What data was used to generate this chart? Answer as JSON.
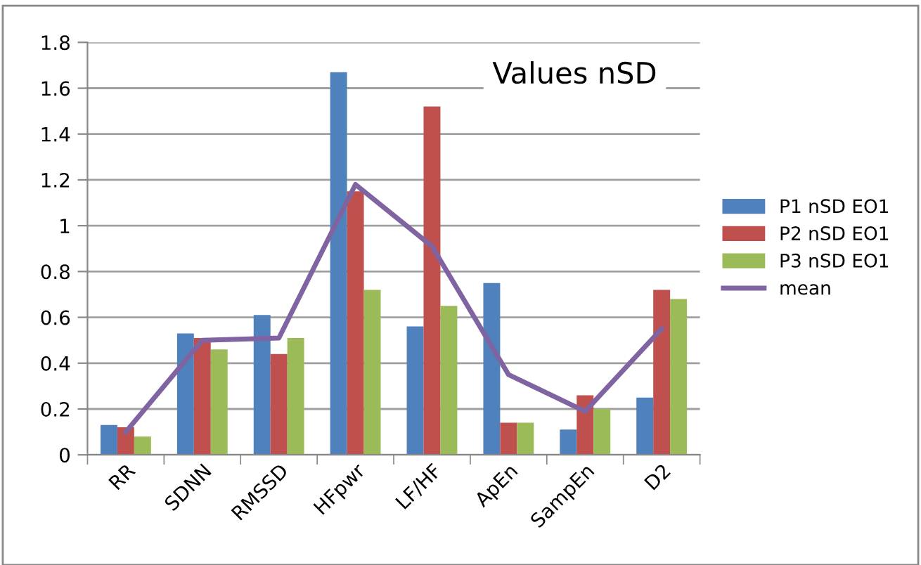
{
  "chart_data": {
    "type": "bar",
    "title": "Values nSD",
    "categories": [
      "RR",
      "SDNN",
      "RMSSD",
      "HFpwr",
      "LF/HF",
      "ApEn",
      "SampEn",
      "D2"
    ],
    "series": [
      {
        "name": "P1 nSD EO1",
        "color": "#4f81bd",
        "values": [
          0.13,
          0.53,
          0.61,
          1.67,
          0.56,
          0.75,
          0.11,
          0.25
        ]
      },
      {
        "name": "P2 nSD EO1",
        "color": "#c0504d",
        "values": [
          0.12,
          0.51,
          0.44,
          1.15,
          1.52,
          0.14,
          0.26,
          0.72
        ]
      },
      {
        "name": "P3 nSD EO1",
        "color": "#9bbb59",
        "values": [
          0.08,
          0.46,
          0.51,
          0.72,
          0.65,
          0.14,
          0.2,
          0.68
        ]
      },
      {
        "name": "mean",
        "type": "line",
        "color": "#8064a2",
        "values": [
          0.1,
          0.5,
          0.51,
          1.18,
          0.91,
          0.35,
          0.19,
          0.55
        ]
      }
    ],
    "ylim": [
      0,
      1.8
    ],
    "yticks": [
      0,
      0.2,
      0.4,
      0.6,
      0.8,
      1,
      1.2,
      1.4,
      1.6,
      1.8
    ],
    "grid": "y",
    "legend": "right",
    "marker": "none",
    "line_style": "solid"
  }
}
